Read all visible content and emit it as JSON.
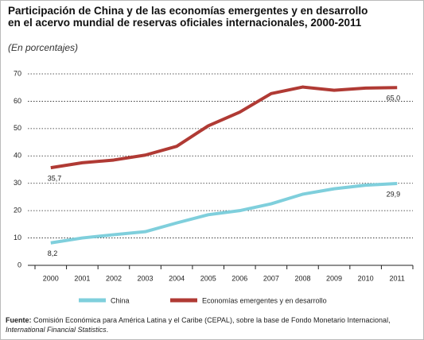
{
  "chart_data": {
    "type": "line",
    "title": "Participación de China y de las economías emergentes y en desarrollo en el acervo mundial de reservas oficiales internacionales, 2000-2011",
    "subtitle": "(En porcentajes)",
    "categories": [
      "2000",
      "2001",
      "2002",
      "2003",
      "2004",
      "2005",
      "2006",
      "2007",
      "2008",
      "2009",
      "2010",
      "2011"
    ],
    "series": [
      {
        "name": "China",
        "color": "#7fcfdc",
        "values": [
          8.2,
          10,
          11.2,
          12.3,
          15.5,
          18.5,
          20,
          22.5,
          26,
          28,
          29.3,
          29.9
        ],
        "value_labels": [
          "8,2",
          null,
          null,
          null,
          null,
          null,
          null,
          null,
          null,
          null,
          null,
          "29,9"
        ]
      },
      {
        "name": "Economías emergentes y en desarrollo",
        "color": "#b03a34",
        "values": [
          35.7,
          37.5,
          38.5,
          40.3,
          43.5,
          51,
          56,
          62.8,
          65.2,
          64,
          64.8,
          65.0
        ],
        "value_labels": [
          "35,7",
          null,
          null,
          null,
          null,
          null,
          null,
          null,
          null,
          null,
          null,
          "65,0"
        ]
      }
    ],
    "ylim": [
      0,
      70
    ],
    "yticks": [
      0,
      10,
      20,
      30,
      40,
      50,
      60,
      70
    ],
    "grid": true,
    "legend": "bottom",
    "source": [
      "Fuente:",
      " Comisión Económica para América Latina y el Caribe (CEPAL), sobre la base de Fondo Monetario Internacional, ",
      "International Financial Statistics",
      "."
    ]
  }
}
